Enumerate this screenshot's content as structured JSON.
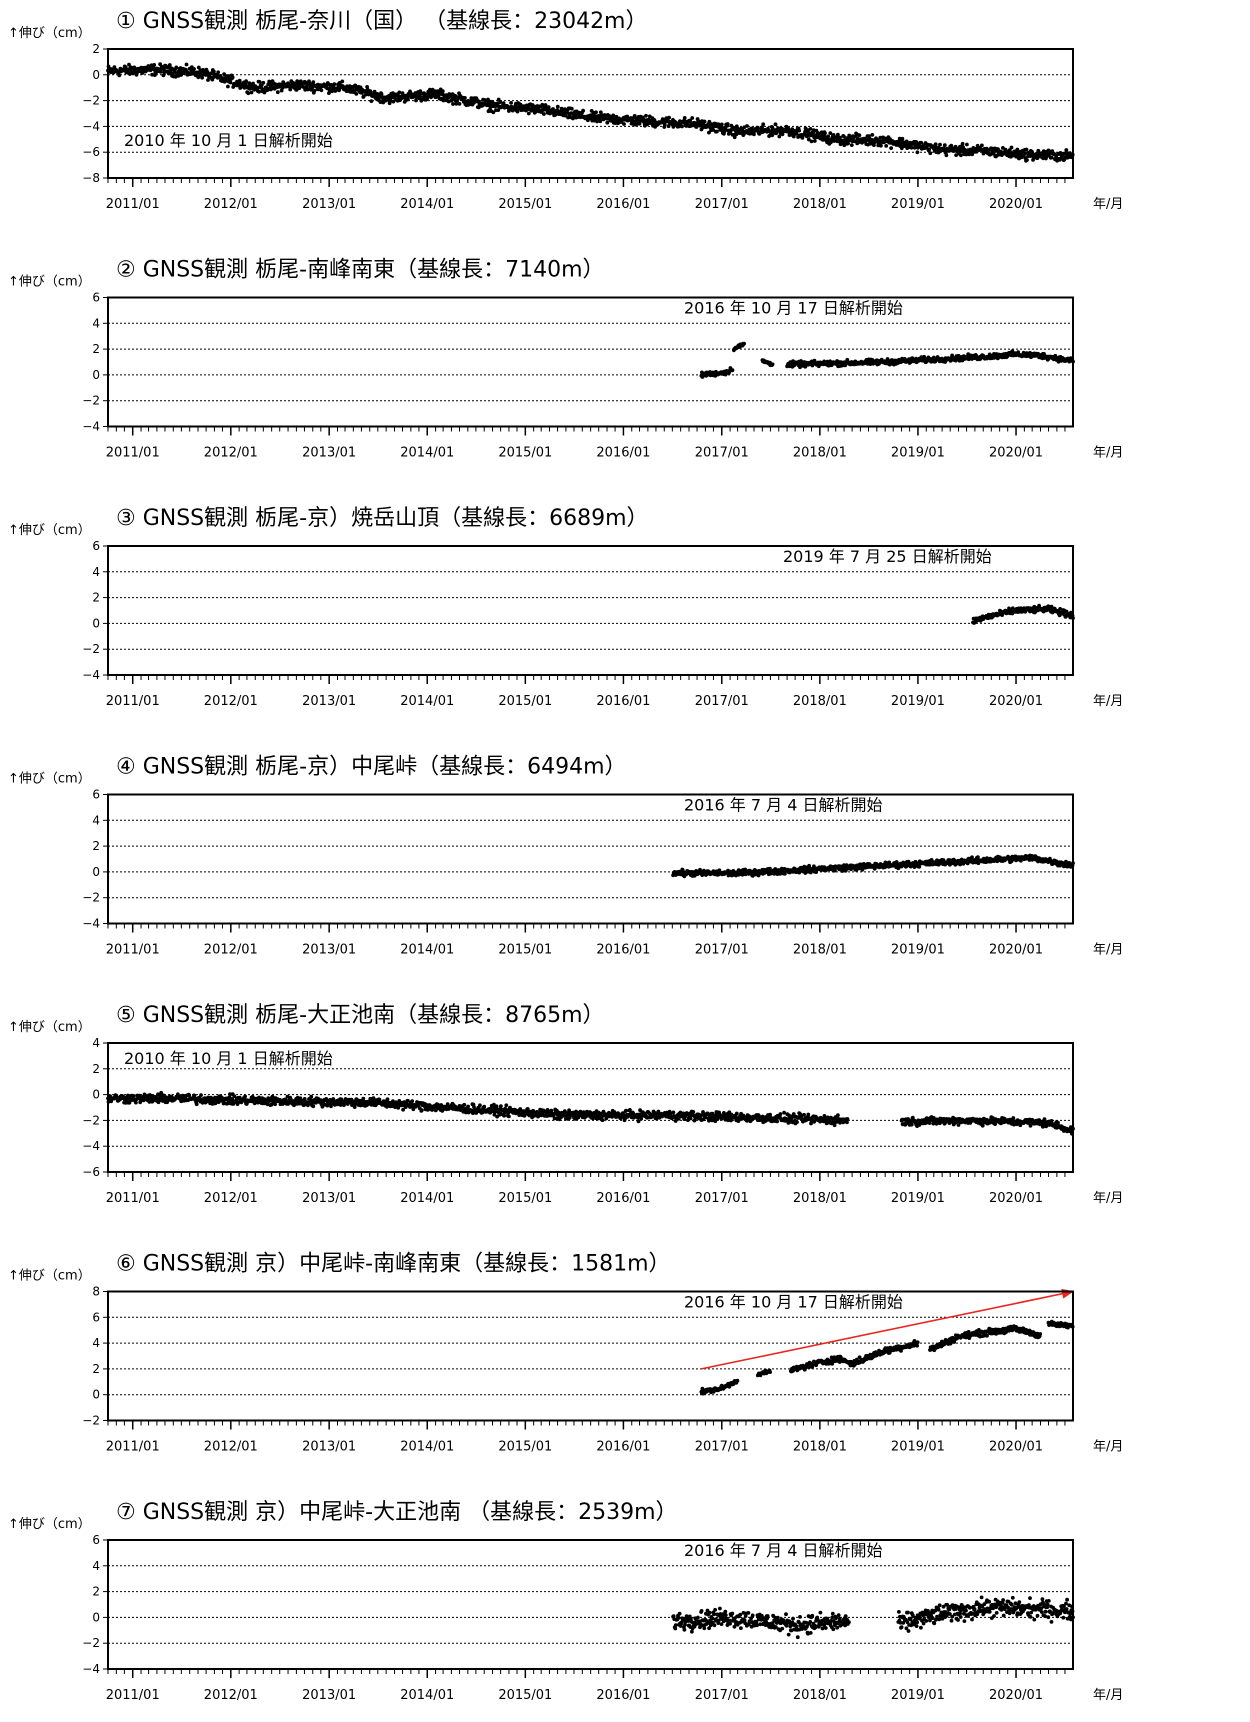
{
  "chart_data": [
    {
      "type": "scatter",
      "title": "① GNSS観測 栃尾-奈川（国） （基線長：23042m）",
      "ylabel": "↑伸び（cm）",
      "xlabel": "年/月",
      "ylim": [
        -8,
        2
      ],
      "yticks": [
        "2",
        "0",
        "−2",
        "−4",
        "−6",
        "−8"
      ],
      "yticks_values": [
        2,
        0,
        -2,
        -4,
        -6,
        -8
      ],
      "xlim": [
        "2010-10-01",
        "2020-07-31"
      ],
      "xticks": [
        "2011/01",
        "2012/01",
        "2013/01",
        "2014/01",
        "2015/01",
        "2016/01",
        "2017/01",
        "2018/01",
        "2019/01",
        "2020/01"
      ],
      "grid": true,
      "annotation": "2010 年 10 月 1 日解析開始",
      "trend_line": null,
      "series": [
        {
          "segments": [
            {
              "x": [
                "2010-10-01",
                "2011-04-01",
                "2011-09-01",
                "2012-04-01",
                "2012-09-01",
                "2013-03-01",
                "2013-08-01",
                "2014-02-01",
                "2014-09-01",
                "2015-03-01",
                "2015-09-01",
                "2016-04-01",
                "2016-10-01",
                "2017-03-01",
                "2017-09-01",
                "2018-03-01",
                "2018-09-01",
                "2019-04-01",
                "2019-09-01",
                "2020-03-01",
                "2020-07-31"
              ],
              "y": [
                0.3,
                0.4,
                0.2,
                -1.0,
                -0.8,
                -1.0,
                -1.8,
                -1.5,
                -2.4,
                -2.7,
                -3.3,
                -3.6,
                -3.8,
                -4.4,
                -4.3,
                -5.0,
                -5.1,
                -5.8,
                -5.9,
                -6.2,
                -6.3
              ],
              "noise": 0.35
            }
          ]
        }
      ]
    },
    {
      "type": "scatter",
      "title": "② GNSS観測 栃尾-南峰南東（基線長：7140m）",
      "ylabel": "↑伸び（cm）",
      "xlabel": "年/月",
      "ylim": [
        -4,
        6
      ],
      "yticks": [
        "6",
        "4",
        "2",
        "0",
        "−2",
        "−4"
      ],
      "yticks_values": [
        6,
        4,
        2,
        0,
        -2,
        -4
      ],
      "xlim": [
        "2010-10-01",
        "2020-07-31"
      ],
      "xticks": [
        "2011/01",
        "2012/01",
        "2013/01",
        "2014/01",
        "2015/01",
        "2016/01",
        "2017/01",
        "2018/01",
        "2019/01",
        "2020/01"
      ],
      "grid": true,
      "annotation": "2016 年 10 月 17 日解析開始",
      "trend_line": null,
      "series": [
        {
          "segments": [
            {
              "x": [
                "2016-10-17",
                "2017-01-20",
                "2017-02-10"
              ],
              "y": [
                0.0,
                0.2,
                0.5
              ],
              "noise": 0.15
            },
            {
              "x": [
                "2017-02-15",
                "2017-03-25"
              ],
              "y": [
                2.0,
                2.4
              ],
              "noise": 0.12
            },
            {
              "x": [
                "2017-06-01",
                "2017-07-10"
              ],
              "y": [
                1.1,
                0.8
              ],
              "noise": 0.1
            },
            {
              "x": [
                "2017-09-01",
                "2018-03-01",
                "2018-09-01",
                "2019-03-01",
                "2019-09-01",
                "2020-01-01",
                "2020-04-01",
                "2020-07-31"
              ],
              "y": [
                0.8,
                0.9,
                1.0,
                1.2,
                1.4,
                1.6,
                1.5,
                1.1
              ],
              "noise": 0.18
            }
          ]
        }
      ]
    },
    {
      "type": "scatter",
      "title": "③ GNSS観測 栃尾-京）焼岳山頂（基線長：6689m）",
      "ylabel": "↑伸び（cm）",
      "xlabel": "年/月",
      "ylim": [
        -4,
        6
      ],
      "yticks": [
        "6",
        "4",
        "2",
        "0",
        "−2",
        "−4"
      ],
      "yticks_values": [
        6,
        4,
        2,
        0,
        -2,
        -4
      ],
      "xlim": [
        "2010-10-01",
        "2020-07-31"
      ],
      "xticks": [
        "2011/01",
        "2012/01",
        "2013/01",
        "2014/01",
        "2015/01",
        "2016/01",
        "2017/01",
        "2018/01",
        "2019/01",
        "2020/01"
      ],
      "grid": true,
      "annotation": "2019 年 7 月 25 日解析開始",
      "trend_line": null,
      "series": [
        {
          "segments": [
            {
              "x": [
                "2019-07-25",
                "2019-10-01",
                "2020-01-01",
                "2020-05-01",
                "2020-07-31"
              ],
              "y": [
                0.2,
                0.6,
                1.0,
                1.1,
                0.6
              ],
              "noise": 0.2
            }
          ]
        }
      ]
    },
    {
      "type": "scatter",
      "title": "④ GNSS観測 栃尾-京）中尾峠（基線長：6494m）",
      "ylabel": "↑伸び（cm）",
      "xlabel": "年/月",
      "ylim": [
        -4,
        6
      ],
      "yticks": [
        "6",
        "4",
        "2",
        "0",
        "−2",
        "−4"
      ],
      "yticks_values": [
        6,
        4,
        2,
        0,
        -2,
        -4
      ],
      "xlim": [
        "2010-10-01",
        "2020-07-31"
      ],
      "xticks": [
        "2011/01",
        "2012/01",
        "2013/01",
        "2014/01",
        "2015/01",
        "2016/01",
        "2017/01",
        "2018/01",
        "2019/01",
        "2020/01"
      ],
      "grid": true,
      "annotation": "2016 年 7 月 4 日解析開始",
      "trend_line": null,
      "series": [
        {
          "segments": [
            {
              "x": [
                "2016-07-04",
                "2017-03-01",
                "2017-09-01",
                "2018-03-01",
                "2018-09-01",
                "2019-03-01",
                "2019-09-01",
                "2020-03-01",
                "2020-07-31"
              ],
              "y": [
                -0.1,
                -0.1,
                0.1,
                0.3,
                0.5,
                0.7,
                0.9,
                1.1,
                0.5
              ],
              "noise": 0.2
            }
          ]
        }
      ]
    },
    {
      "type": "scatter",
      "title": "⑤ GNSS観測 栃尾-大正池南（基線長：8765m）",
      "ylabel": "↑伸び（cm）",
      "xlabel": "年/月",
      "ylim": [
        -6,
        4
      ],
      "yticks": [
        "4",
        "2",
        "0",
        "−2",
        "−4",
        "−6"
      ],
      "yticks_values": [
        4,
        2,
        0,
        -2,
        -4,
        -6
      ],
      "xlim": [
        "2010-10-01",
        "2020-07-31"
      ],
      "xticks": [
        "2011/01",
        "2012/01",
        "2013/01",
        "2014/01",
        "2015/01",
        "2016/01",
        "2017/01",
        "2018/01",
        "2019/01",
        "2020/01"
      ],
      "grid": true,
      "annotation": "2010 年 10 月 1 日解析開始",
      "trend_line": null,
      "series": [
        {
          "segments": [
            {
              "x": [
                "2010-10-01",
                "2011-06-01",
                "2012-06-01",
                "2013-06-01",
                "2014-06-01",
                "2015-06-01",
                "2016-06-01",
                "2017-06-01",
                "2018-04-15"
              ],
              "y": [
                -0.3,
                -0.3,
                -0.5,
                -0.6,
                -1.1,
                -1.6,
                -1.6,
                -1.8,
                -2.0
              ],
              "noise": 0.3
            },
            {
              "x": [
                "2018-11-01",
                "2019-06-01",
                "2020-01-01",
                "2020-05-01",
                "2020-07-31"
              ],
              "y": [
                -2.1,
                -2.0,
                -2.1,
                -2.2,
                -2.8
              ],
              "noise": 0.25
            }
          ]
        }
      ]
    },
    {
      "type": "scatter",
      "title": "⑥ GNSS観測 京）中尾峠-南峰南東（基線長：1581m）",
      "ylabel": "↑伸び（cm）",
      "xlabel": "年/月",
      "ylim": [
        -2,
        8
      ],
      "yticks": [
        "8",
        "6",
        "4",
        "2",
        "0",
        "−2"
      ],
      "yticks_values": [
        8,
        6,
        4,
        2,
        0,
        -2
      ],
      "xlim": [
        "2010-10-01",
        "2020-07-31"
      ],
      "xticks": [
        "2011/01",
        "2012/01",
        "2013/01",
        "2014/01",
        "2015/01",
        "2016/01",
        "2017/01",
        "2018/01",
        "2019/01",
        "2020/01"
      ],
      "grid": true,
      "annotation": "2016 年 10 月 17 日解析開始",
      "trend_line": {
        "x": [
          "2016-10-17",
          "2020-07-31"
        ],
        "y": [
          2.0,
          8.0
        ],
        "color": "#e8271f"
      },
      "series": [
        {
          "segments": [
            {
              "x": [
                "2016-10-17",
                "2017-01-01",
                "2017-03-01"
              ],
              "y": [
                0.2,
                0.5,
                1.1
              ],
              "noise": 0.15
            },
            {
              "x": [
                "2017-05-15",
                "2017-07-01"
              ],
              "y": [
                1.6,
                1.8
              ],
              "noise": 0.1
            },
            {
              "x": [
                "2017-09-15",
                "2018-01-01",
                "2018-03-15",
                "2018-05-01",
                "2018-09-01",
                "2019-01-01"
              ],
              "y": [
                1.9,
                2.5,
                2.8,
                2.4,
                3.4,
                4.0
              ],
              "noise": 0.2
            },
            {
              "x": [
                "2019-02-15",
                "2019-06-01",
                "2019-09-01",
                "2020-01-01",
                "2020-04-01"
              ],
              "y": [
                3.5,
                4.5,
                4.8,
                5.1,
                4.6
              ],
              "noise": 0.2
            },
            {
              "x": [
                "2020-05-01",
                "2020-07-31"
              ],
              "y": [
                5.5,
                5.3
              ],
              "noise": 0.15
            }
          ]
        }
      ]
    },
    {
      "type": "scatter",
      "title": "⑦ GNSS観測 京）中尾峠-大正池南 （基線長：2539m）",
      "ylabel": "↑伸び（cm）",
      "xlabel": "年/月",
      "ylim": [
        -4,
        6
      ],
      "yticks": [
        "6",
        "4",
        "2",
        "0",
        "−2",
        "−4"
      ],
      "yticks_values": [
        6,
        4,
        2,
        0,
        -2,
        -4
      ],
      "xlim": [
        "2010-10-01",
        "2020-07-31"
      ],
      "xticks": [
        "2011/01",
        "2012/01",
        "2013/01",
        "2014/01",
        "2015/01",
        "2016/01",
        "2017/01",
        "2018/01",
        "2019/01",
        "2020/01"
      ],
      "grid": true,
      "annotation": "2016 年 7 月 4 日解析開始",
      "trend_line": null,
      "series": [
        {
          "segments": [
            {
              "x": [
                "2016-07-04",
                "2017-02-01",
                "2017-10-01",
                "2018-04-20"
              ],
              "y": [
                -0.3,
                0.0,
                -0.6,
                -0.3
              ],
              "noise": 0.6
            },
            {
              "x": [
                "2018-10-20",
                "2019-04-01",
                "2019-10-01",
                "2020-07-31"
              ],
              "y": [
                -0.5,
                0.3,
                0.8,
                0.5
              ],
              "noise": 0.6
            }
          ]
        }
      ]
    }
  ]
}
